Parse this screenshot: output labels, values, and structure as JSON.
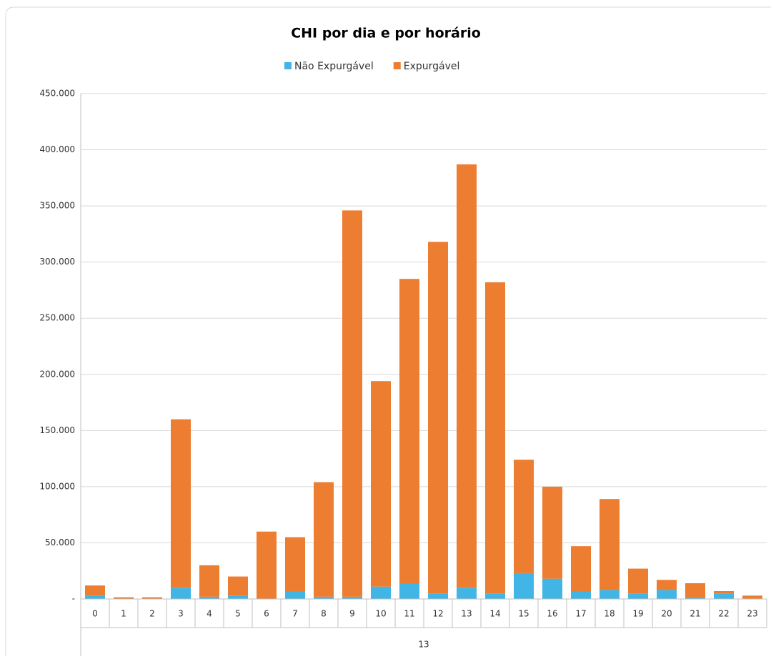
{
  "chart_data": {
    "type": "stacked_bar",
    "title": "CHI por dia e por horário",
    "categories": [
      "0",
      "1",
      "2",
      "3",
      "4",
      "5",
      "6",
      "7",
      "8",
      "9",
      "10",
      "11",
      "12",
      "13",
      "14",
      "15",
      "16",
      "17",
      "18",
      "19",
      "20",
      "21",
      "22",
      "23"
    ],
    "group_label": "13",
    "series": [
      {
        "name": "Não Expurgável",
        "color": "#41b6e6",
        "values": [
          3000,
          0,
          0,
          10000,
          2000,
          3000,
          0,
          7000,
          2000,
          2000,
          11000,
          14000,
          5000,
          10000,
          5000,
          23000,
          18000,
          7000,
          8000,
          5000,
          8000,
          1000,
          5000,
          0
        ]
      },
      {
        "name": "Expurgável",
        "color": "#ed7d31",
        "values": [
          9000,
          1500,
          1500,
          150000,
          28000,
          17000,
          60000,
          48000,
          102000,
          344000,
          183000,
          271000,
          313000,
          377000,
          277000,
          101000,
          82000,
          40000,
          81000,
          22000,
          9000,
          13000,
          2000,
          3000
        ]
      }
    ],
    "ylim": [
      0,
      450000
    ],
    "yticks": [
      {
        "value": 0,
        "label": "-"
      },
      {
        "value": 50000,
        "label": "50.000"
      },
      {
        "value": 100000,
        "label": "100.000"
      },
      {
        "value": 150000,
        "label": "150.000"
      },
      {
        "value": 200000,
        "label": "200.000"
      },
      {
        "value": 250000,
        "label": "250.000"
      },
      {
        "value": 300000,
        "label": "300.000"
      },
      {
        "value": 350000,
        "label": "350.000"
      },
      {
        "value": 400000,
        "label": "400.000"
      },
      {
        "value": 450000,
        "label": "450.000"
      }
    ],
    "grid": true,
    "legend": "top"
  }
}
